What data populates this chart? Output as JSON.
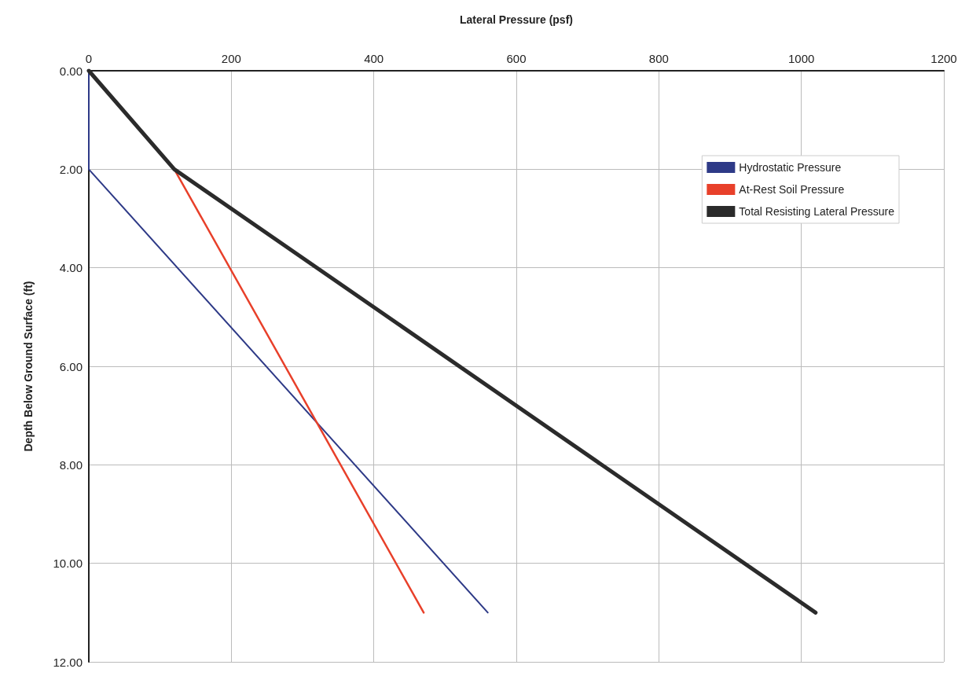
{
  "chart_data": {
    "type": "line",
    "xlabel": "Lateral Pressure (psf)",
    "ylabel": "Depth Below Ground Surface (ft)",
    "xlim": [
      0,
      1200
    ],
    "xticks": [
      0,
      200,
      400,
      600,
      800,
      1000,
      1200
    ],
    "ylim": [
      12,
      0
    ],
    "yticks": [
      {
        "value": 0,
        "label": "0.00"
      },
      {
        "value": 2,
        "label": "2.00"
      },
      {
        "value": 4,
        "label": "4.00"
      },
      {
        "value": 6,
        "label": "6.00"
      },
      {
        "value": 8,
        "label": "8.00"
      },
      {
        "value": 10,
        "label": "10.00"
      },
      {
        "value": 12,
        "label": "12.00"
      }
    ],
    "grid": true,
    "legend": "top right",
    "marker": "none",
    "line_style": "solid",
    "series": [
      {
        "name": "Hydrostatic Pressure",
        "color": "#2e3a87",
        "x": [
          0,
          0,
          560
        ],
        "values": [
          0,
          2,
          11
        ]
      },
      {
        "name": "At-Rest Soil Pressure",
        "color": "#e8402a",
        "x": [
          120,
          470
        ],
        "values": [
          2,
          11
        ]
      },
      {
        "name": "Total Resisting Lateral Pressure",
        "color": "#2b2b2b",
        "x": [
          0,
          120,
          1020
        ],
        "values": [
          0,
          2,
          11
        ]
      }
    ]
  }
}
